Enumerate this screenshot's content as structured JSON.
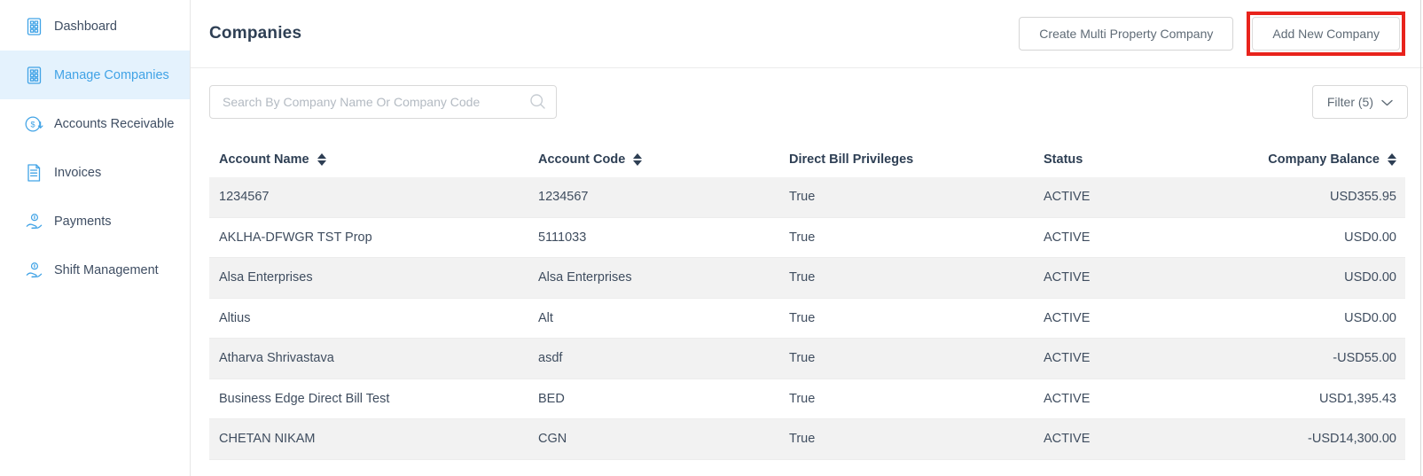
{
  "colors": {
    "accent_blue": "#41a3e6",
    "active_item_bg": "#e4f2fd",
    "highlight_red": "#e8231c",
    "row_alt_bg": "#f2f2f2",
    "heading_text": "#2e3f54"
  },
  "sidebar": {
    "items": [
      {
        "label": "Dashboard",
        "icon": "clipboard-grid-icon",
        "active": false
      },
      {
        "label": "Manage Companies",
        "icon": "clipboard-grid-icon",
        "active": true
      },
      {
        "label": "Accounts Receivable",
        "icon": "dollar-circle-icon",
        "active": false
      },
      {
        "label": "Invoices",
        "icon": "invoice-doc-icon",
        "active": false
      },
      {
        "label": "Payments",
        "icon": "hand-coin-icon",
        "active": false
      },
      {
        "label": "Shift Management",
        "icon": "hand-coin-icon",
        "active": false
      }
    ]
  },
  "header": {
    "title": "Companies",
    "buttons": {
      "create_multi": "Create Multi Property Company",
      "add_new": "Add New Company"
    }
  },
  "toolbar": {
    "search_placeholder": "Search By Company Name Or Company Code",
    "filter_label": "Filter (5)"
  },
  "table": {
    "columns": [
      {
        "key": "account_name",
        "label": "Account Name",
        "sortable": true,
        "align": "left"
      },
      {
        "key": "account_code",
        "label": "Account Code",
        "sortable": true,
        "align": "left"
      },
      {
        "key": "direct_bill",
        "label": "Direct Bill Privileges",
        "sortable": false,
        "align": "left"
      },
      {
        "key": "status",
        "label": "Status",
        "sortable": false,
        "align": "left"
      },
      {
        "key": "company_balance",
        "label": "Company Balance",
        "sortable": true,
        "align": "right"
      }
    ],
    "rows": [
      {
        "account_name": "1234567",
        "account_code": "1234567",
        "direct_bill": "True",
        "status": "ACTIVE",
        "company_balance": "USD355.95"
      },
      {
        "account_name": "AKLHA-DFWGR TST Prop",
        "account_code": "5111033",
        "direct_bill": "True",
        "status": "ACTIVE",
        "company_balance": "USD0.00"
      },
      {
        "account_name": "Alsa Enterprises",
        "account_code": "Alsa Enterprises",
        "direct_bill": "True",
        "status": "ACTIVE",
        "company_balance": "USD0.00"
      },
      {
        "account_name": "Altius",
        "account_code": "Alt",
        "direct_bill": "True",
        "status": "ACTIVE",
        "company_balance": "USD0.00"
      },
      {
        "account_name": "Atharva Shrivastava",
        "account_code": "asdf",
        "direct_bill": "True",
        "status": "ACTIVE",
        "company_balance": "-USD55.00"
      },
      {
        "account_name": "Business Edge Direct Bill Test",
        "account_code": "BED",
        "direct_bill": "True",
        "status": "ACTIVE",
        "company_balance": "USD1,395.43"
      },
      {
        "account_name": "CHETAN NIKAM",
        "account_code": "CGN",
        "direct_bill": "True",
        "status": "ACTIVE",
        "company_balance": "-USD14,300.00"
      }
    ]
  }
}
